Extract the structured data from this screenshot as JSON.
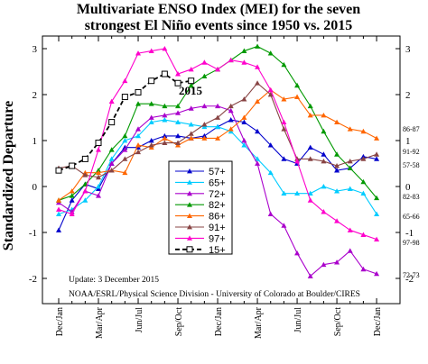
{
  "chart_data": {
    "type": "line",
    "title_lines": [
      "Multivariate ENSO Index (MEI) for the seven",
      "strongest El Niño events since 1950 vs. 2015"
    ],
    "ylabel": "Standardized Departure",
    "xlabel": "",
    "ylim": [
      -2.5,
      3.3
    ],
    "yticks": [
      -2,
      -1,
      0,
      1,
      2,
      3
    ],
    "x_tick_labels": [
      "Dec/Jan",
      "Mar/Apr",
      "Jun/Jul",
      "Sep/Oct",
      "Dec/Jan",
      "Mar/Apr",
      "Jun/Jul",
      "Sep/Oct",
      "Dec/Jan"
    ],
    "x_tick_index": [
      0,
      3,
      6,
      9,
      12,
      15,
      18,
      21,
      24
    ],
    "grid": false,
    "legend_position": "center",
    "annotation": "2015",
    "notes": [
      "Update:  3 December 2015",
      "NOAA/ESRL/Physical Science Division - University of Colorado at Boulder/CIRES"
    ],
    "series": [
      {
        "name": "57+",
        "end_label": "57-58",
        "color": "#0000cc",
        "marker": "triangle-up",
        "values": [
          -0.95,
          -0.3,
          0.05,
          -0.05,
          0.5,
          0.85,
          0.85,
          1.0,
          1.1,
          1.1,
          1.05,
          1.1,
          1.3,
          1.45,
          1.4,
          1.2,
          0.9,
          0.6,
          0.5,
          0.85,
          0.7,
          0.35,
          0.4,
          0.65,
          0.6
        ]
      },
      {
        "name": "65+",
        "end_label": "65-66",
        "color": "#00ccff",
        "marker": "triangle-up",
        "values": [
          -0.6,
          -0.5,
          -0.3,
          0.0,
          0.6,
          1.0,
          1.1,
          1.4,
          1.45,
          1.4,
          1.35,
          1.3,
          1.3,
          1.2,
          0.9,
          0.6,
          0.3,
          -0.15,
          -0.15,
          -0.15,
          0.0,
          -0.1,
          -0.05,
          -0.15,
          -0.6
        ]
      },
      {
        "name": "72+",
        "end_label": "72-73",
        "color": "#aa00cc",
        "marker": "triangle-up",
        "values": [
          -0.35,
          -0.55,
          -0.1,
          -0.2,
          0.5,
          0.8,
          1.25,
          1.5,
          1.55,
          1.6,
          1.7,
          1.75,
          1.75,
          1.65,
          1.0,
          0.5,
          -0.6,
          -0.85,
          -1.45,
          -1.95,
          -1.7,
          -1.65,
          -1.4,
          -1.8,
          -1.9
        ]
      },
      {
        "name": "82+",
        "end_label": "82-83",
        "color": "#009900",
        "marker": "triangle-up",
        "values": [
          -0.3,
          -0.2,
          0.05,
          0.35,
          0.8,
          1.1,
          1.8,
          1.8,
          1.75,
          1.75,
          2.2,
          2.4,
          2.55,
          2.75,
          2.95,
          3.05,
          2.9,
          2.65,
          2.2,
          1.75,
          1.2,
          0.7,
          0.4,
          0.1,
          -0.25
        ]
      },
      {
        "name": "86+",
        "end_label": "86-87",
        "color": "#ff6600",
        "marker": "triangle-up",
        "values": [
          -0.3,
          -0.1,
          0.3,
          0.3,
          0.35,
          0.3,
          0.9,
          0.85,
          1.05,
          0.9,
          1.05,
          1.05,
          1.05,
          1.25,
          1.5,
          1.85,
          2.1,
          1.9,
          1.95,
          1.55,
          1.55,
          1.4,
          1.25,
          1.2,
          1.05
        ]
      },
      {
        "name": "91+",
        "end_label": "91-92",
        "color": "#884444",
        "marker": "triangle-up",
        "values": [
          0.4,
          0.45,
          0.25,
          0.2,
          0.35,
          0.6,
          0.75,
          0.9,
          0.95,
          0.95,
          1.15,
          1.35,
          1.5,
          1.75,
          1.9,
          2.25,
          2.0,
          1.25,
          0.6,
          0.6,
          0.55,
          0.45,
          0.55,
          0.6,
          0.7
        ]
      },
      {
        "name": "97+",
        "end_label": "97-98",
        "color": "#ff00cc",
        "marker": "triangle-up",
        "values": [
          -0.5,
          -0.6,
          -0.1,
          0.8,
          1.85,
          2.3,
          2.9,
          2.95,
          3.0,
          2.45,
          2.55,
          2.7,
          2.55,
          2.75,
          2.7,
          2.6,
          2.1,
          1.4,
          0.55,
          -0.3,
          -0.55,
          -0.75,
          -0.95,
          -1.05,
          -1.15
        ]
      },
      {
        "name": "15+",
        "end_label": "",
        "color": "#000000",
        "marker": "square-open",
        "dashed": true,
        "values": [
          0.35,
          0.45,
          0.6,
          0.95,
          1.4,
          1.95,
          2.05,
          2.3,
          2.45,
          2.25,
          2.3
        ]
      }
    ]
  }
}
